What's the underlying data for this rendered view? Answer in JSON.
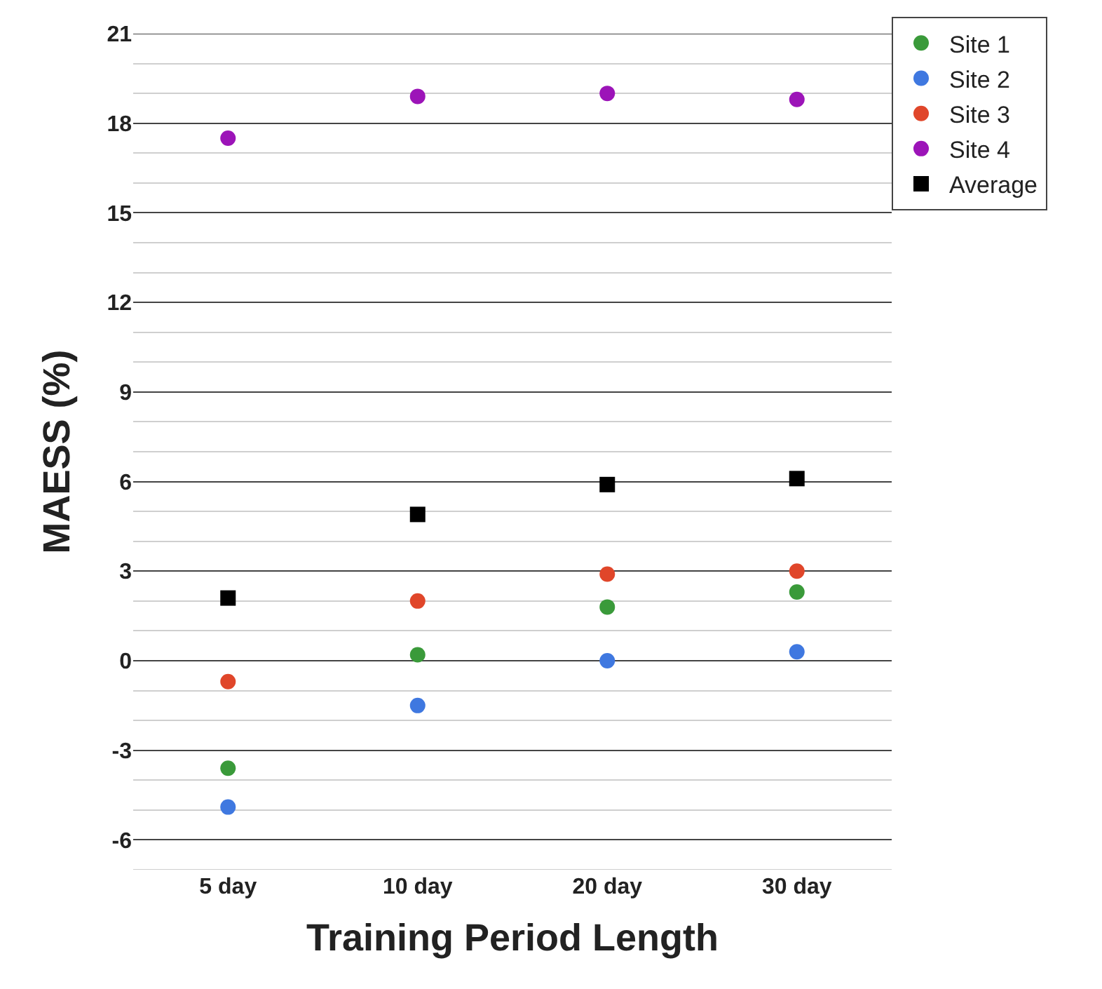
{
  "chart_data": {
    "type": "scatter",
    "xlabel": "Training Period Length",
    "ylabel": "MAESS (%)",
    "categories": [
      "5 day",
      "10 day",
      "20 day",
      "30 day"
    ],
    "series": [
      {
        "name": "Site 1",
        "color": "#3a9a3a",
        "values": [
          -3.6,
          0.2,
          1.8,
          2.3
        ]
      },
      {
        "name": "Site 2",
        "color": "#3f78e0",
        "values": [
          -4.9,
          -1.5,
          0.0,
          0.3
        ]
      },
      {
        "name": "Site 3",
        "color": "#e0462a",
        "values": [
          -0.7,
          2.0,
          2.9,
          3.0
        ]
      },
      {
        "name": "Site 4",
        "color": "#9c14b8",
        "values": [
          17.5,
          18.9,
          19.0,
          18.8
        ]
      },
      {
        "name": "Average",
        "color": "#000000",
        "values": [
          2.1,
          4.9,
          5.9,
          6.1
        ],
        "marker": "square"
      }
    ],
    "ylim": [
      -7,
      21
    ],
    "yticks": [
      -6,
      -3,
      0,
      3,
      6,
      9,
      12,
      15,
      18,
      21
    ],
    "grid": "y",
    "legend": "top right",
    "marker": "circle"
  }
}
